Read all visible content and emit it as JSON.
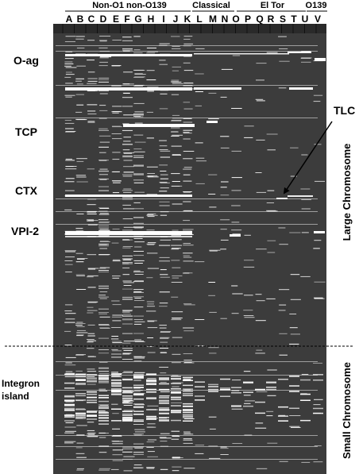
{
  "groups": [
    {
      "label": "Non-O1 non-O139",
      "lanes": [
        "A",
        "B",
        "C",
        "D",
        "E",
        "F",
        "G",
        "H",
        "I",
        "J",
        "K"
      ]
    },
    {
      "label": "Classical",
      "lanes": [
        "L",
        "M",
        "N"
      ]
    },
    {
      "label": "El Tor",
      "lanes": [
        "O",
        "P",
        "Q",
        "R",
        "S",
        "T",
        "U"
      ]
    },
    {
      "label": "O139",
      "lanes": [
        "V"
      ]
    }
  ],
  "lanes": [
    "A",
    "B",
    "C",
    "D",
    "E",
    "F",
    "G",
    "H",
    "I",
    "J",
    "K",
    "L",
    "M",
    "N",
    "O",
    "P",
    "Q",
    "R",
    "S",
    "T",
    "U",
    "V"
  ],
  "regions": {
    "o_ag": "O-ag",
    "tcp": "TCP",
    "ctx": "CTX",
    "vpi2": "VPI-2",
    "integron_line1": "Integron",
    "integron_line2": "island"
  },
  "callout": "TLC",
  "side_labels": {
    "large": "Large Chromosome",
    "small": "Small Chromosome"
  },
  "colors": {
    "panel": "#3c3c3c",
    "band": "#ffffff",
    "text": "#000000"
  }
}
